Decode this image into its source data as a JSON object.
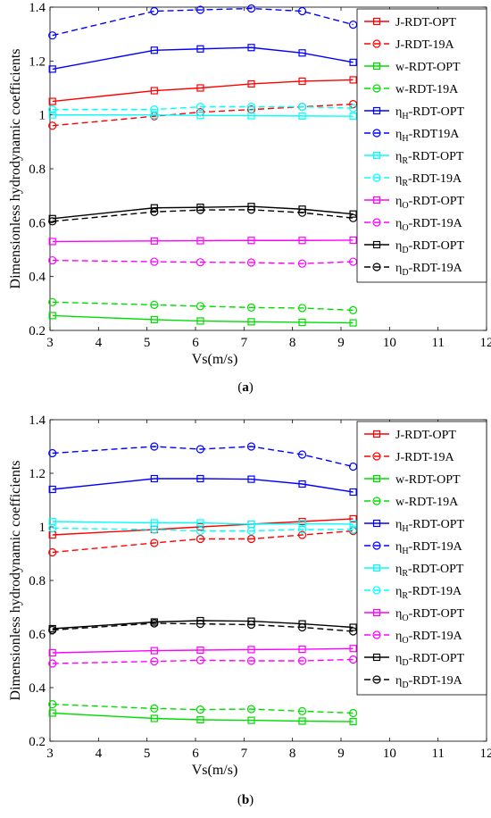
{
  "chart_data": [
    {
      "type": "line",
      "caption_open": "(",
      "caption_label": "a",
      "caption_close": ")",
      "xlabel": "Vs(m/s)",
      "ylabel": "Dimensionless hydrodynamic coefficients",
      "xlim": [
        3,
        12
      ],
      "ylim": [
        0.2,
        1.4
      ],
      "xticks": [
        "3",
        "4",
        "5",
        "6",
        "7",
        "8",
        "9",
        "10",
        "11",
        "12"
      ],
      "yticks": [
        "0.2",
        "0.4",
        "0.6",
        "0.8",
        "1",
        "1.2",
        "1.4"
      ],
      "grid": false,
      "legend_position": "right",
      "x": [
        3.05,
        5.15,
        6.1,
        7.15,
        8.2,
        9.25
      ],
      "series": [
        {
          "name_main": "J-RDT-OPT",
          "name_sub": "",
          "name_rest": "",
          "color": "#ff0000",
          "dash": "solid",
          "marker": "square",
          "values": [
            1.05,
            1.09,
            1.1,
            1.115,
            1.125,
            1.13
          ]
        },
        {
          "name_main": "J-RDT-19A",
          "name_sub": "",
          "name_rest": "",
          "color": "#ff0000",
          "dash": "dashed",
          "marker": "circle",
          "values": [
            0.96,
            0.995,
            1.01,
            1.02,
            1.03,
            1.04
          ]
        },
        {
          "name_main": "w-RDT-OPT",
          "name_sub": "",
          "name_rest": "",
          "color": "#00dd00",
          "dash": "solid",
          "marker": "square",
          "values": [
            0.255,
            0.24,
            0.235,
            0.232,
            0.23,
            0.228
          ]
        },
        {
          "name_main": "w-RDT-19A",
          "name_sub": "",
          "name_rest": "",
          "color": "#00dd00",
          "dash": "dashed",
          "marker": "circle",
          "values": [
            0.305,
            0.295,
            0.29,
            0.285,
            0.283,
            0.275
          ]
        },
        {
          "name_main": "η",
          "name_sub": "H",
          "name_rest": "-RDT-OPT",
          "color": "#0000ff",
          "dash": "solid",
          "marker": "square",
          "values": [
            1.17,
            1.24,
            1.245,
            1.25,
            1.23,
            1.195
          ]
        },
        {
          "name_main": "η",
          "name_sub": "H",
          "name_rest": "-RDT19A",
          "color": "#0000ff",
          "dash": "dashed",
          "marker": "circle",
          "values": [
            1.295,
            1.385,
            1.39,
            1.395,
            1.385,
            1.335
          ]
        },
        {
          "name_main": "η",
          "name_sub": "R",
          "name_rest": "-RDT-OPT",
          "color": "#00ffff",
          "dash": "solid",
          "marker": "square",
          "values": [
            1.0,
            1.0,
            0.998,
            0.997,
            0.996,
            0.995
          ]
        },
        {
          "name_main": "η",
          "name_sub": "R",
          "name_rest": "-RDT-19A",
          "color": "#00ffff",
          "dash": "dashed",
          "marker": "circle",
          "values": [
            1.02,
            1.02,
            1.03,
            1.03,
            1.03,
            1.025
          ]
        },
        {
          "name_main": "η",
          "name_sub": "O",
          "name_rest": "-RDT-OPT",
          "color": "#ff00ff",
          "dash": "solid",
          "marker": "square",
          "values": [
            0.53,
            0.532,
            0.533,
            0.534,
            0.534,
            0.535
          ]
        },
        {
          "name_main": "η",
          "name_sub": "O",
          "name_rest": "-RDT-19A",
          "color": "#ff00ff",
          "dash": "dashed",
          "marker": "circle",
          "values": [
            0.46,
            0.455,
            0.453,
            0.452,
            0.448,
            0.455
          ]
        },
        {
          "name_main": "η",
          "name_sub": "D",
          "name_rest": "-RDT-OPT",
          "color": "#000000",
          "dash": "solid",
          "marker": "square",
          "values": [
            0.615,
            0.655,
            0.657,
            0.66,
            0.65,
            0.632
          ]
        },
        {
          "name_main": "η",
          "name_sub": "D",
          "name_rest": "-RDT-19A",
          "color": "#000000",
          "dash": "dashed",
          "marker": "circle",
          "values": [
            0.605,
            0.64,
            0.647,
            0.648,
            0.637,
            0.617
          ]
        }
      ]
    },
    {
      "type": "line",
      "caption_open": "(",
      "caption_label": "b",
      "caption_close": ")",
      "xlabel": "Vs(m/s)",
      "ylabel": "Dimensionless hydrodynamic coefficients",
      "xlim": [
        3,
        12
      ],
      "ylim": [
        0.2,
        1.4
      ],
      "xticks": [
        "3",
        "4",
        "5",
        "6",
        "7",
        "8",
        "9",
        "10",
        "11",
        "12"
      ],
      "yticks": [
        "0.2",
        "0.4",
        "0.6",
        "0.8",
        "1",
        "1.2",
        "1.4"
      ],
      "grid": false,
      "legend_position": "right",
      "x": [
        3.05,
        5.15,
        6.1,
        7.15,
        8.2,
        9.25
      ],
      "series": [
        {
          "name_main": "J-RDT-OPT",
          "name_sub": "",
          "name_rest": "",
          "color": "#ff0000",
          "dash": "solid",
          "marker": "square",
          "values": [
            0.97,
            0.99,
            1.0,
            1.01,
            1.02,
            1.03
          ]
        },
        {
          "name_main": "J-RDT-19A",
          "name_sub": "",
          "name_rest": "",
          "color": "#ff0000",
          "dash": "dashed",
          "marker": "circle",
          "values": [
            0.905,
            0.94,
            0.955,
            0.955,
            0.97,
            0.985
          ]
        },
        {
          "name_main": "w-RDT-OPT",
          "name_sub": "",
          "name_rest": "",
          "color": "#00dd00",
          "dash": "solid",
          "marker": "square",
          "values": [
            0.305,
            0.285,
            0.28,
            0.278,
            0.275,
            0.273
          ]
        },
        {
          "name_main": "w-RDT-19A",
          "name_sub": "",
          "name_rest": "",
          "color": "#00dd00",
          "dash": "dashed",
          "marker": "circle",
          "values": [
            0.338,
            0.322,
            0.318,
            0.32,
            0.312,
            0.305
          ]
        },
        {
          "name_main": "η",
          "name_sub": "H",
          "name_rest": "-RDT-OPT",
          "color": "#0000ff",
          "dash": "solid",
          "marker": "square",
          "values": [
            1.14,
            1.18,
            1.18,
            1.178,
            1.16,
            1.13
          ]
        },
        {
          "name_main": "η",
          "name_sub": "H",
          "name_rest": "-RDT-19A",
          "color": "#0000ff",
          "dash": "dashed",
          "marker": "circle",
          "values": [
            1.275,
            1.3,
            1.29,
            1.3,
            1.27,
            1.225
          ]
        },
        {
          "name_main": "η",
          "name_sub": "R",
          "name_rest": "-RDT-OPT",
          "color": "#00ffff",
          "dash": "solid",
          "marker": "square",
          "values": [
            1.02,
            1.015,
            1.015,
            1.01,
            1.012,
            1.01
          ]
        },
        {
          "name_main": "η",
          "name_sub": "R",
          "name_rest": "-RDT-19A",
          "color": "#00ffff",
          "dash": "dashed",
          "marker": "circle",
          "values": [
            0.995,
            0.99,
            0.985,
            0.985,
            0.99,
            0.99
          ]
        },
        {
          "name_main": "η",
          "name_sub": "O",
          "name_rest": "-RDT-OPT",
          "color": "#ff00ff",
          "dash": "solid",
          "marker": "square",
          "values": [
            0.53,
            0.538,
            0.54,
            0.542,
            0.543,
            0.546
          ]
        },
        {
          "name_main": "η",
          "name_sub": "O",
          "name_rest": "-RDT-19A",
          "color": "#ff00ff",
          "dash": "dashed",
          "marker": "circle",
          "values": [
            0.49,
            0.498,
            0.502,
            0.5,
            0.5,
            0.505
          ]
        },
        {
          "name_main": "η",
          "name_sub": "D",
          "name_rest": "-RDT-OPT",
          "color": "#000000",
          "dash": "solid",
          "marker": "square",
          "values": [
            0.62,
            0.645,
            0.65,
            0.648,
            0.638,
            0.625
          ]
        },
        {
          "name_main": "η",
          "name_sub": "D",
          "name_rest": "-RDT-19A",
          "color": "#000000",
          "dash": "dashed",
          "marker": "circle",
          "values": [
            0.615,
            0.64,
            0.638,
            0.635,
            0.625,
            0.61
          ]
        }
      ]
    }
  ]
}
